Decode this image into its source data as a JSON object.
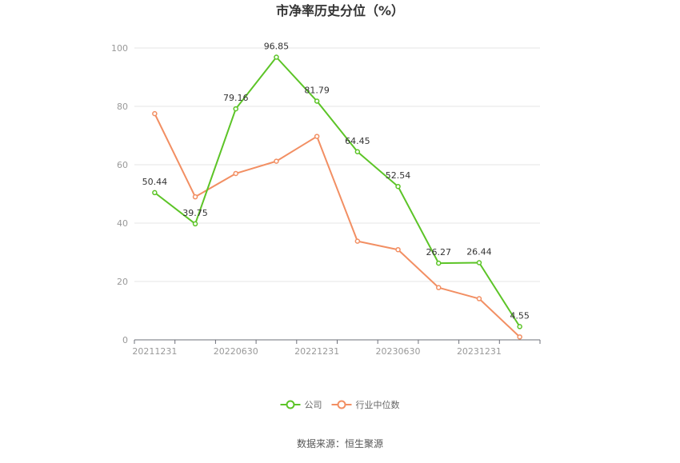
{
  "chart_data": {
    "type": "line",
    "title": "市净率历史分位（%）",
    "xlabel": "",
    "ylabel": "",
    "ylim": [
      0,
      100
    ],
    "yticks": [
      0,
      20,
      40,
      60,
      80,
      100
    ],
    "x": [
      "20211231",
      "20220331",
      "20220630",
      "20220930",
      "20221231",
      "20230331",
      "20230630",
      "20230930",
      "20231231",
      "20240331"
    ],
    "xtick_labels": [
      "20211231",
      "20220630",
      "20221231",
      "20230630",
      "20231231"
    ],
    "grid": true,
    "legend_position": "bottom",
    "series": [
      {
        "name": "公司",
        "color": "#5cc427",
        "values": [
          50.44,
          39.75,
          79.16,
          96.85,
          81.79,
          64.45,
          52.54,
          26.27,
          26.44,
          4.55
        ],
        "labels": [
          "50.44",
          "39.75",
          "79.16",
          "96.85",
          "81.79",
          "64.45",
          "52.54",
          "26.27",
          "26.44",
          "4.55"
        ]
      },
      {
        "name": "行业中位数",
        "color": "#f28f63",
        "values": [
          77.5,
          49.0,
          57.0,
          61.2,
          69.7,
          33.8,
          30.9,
          17.9,
          14.1,
          1.0
        ]
      }
    ]
  },
  "footer": {
    "source": "数据来源：恒生聚源"
  }
}
